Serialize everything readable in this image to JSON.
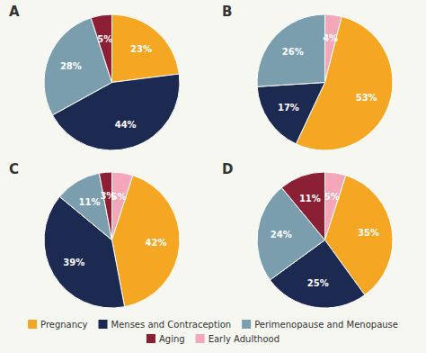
{
  "chart_data": [
    {
      "type": "pie",
      "title": "A",
      "categories": [
        "Pregnancy",
        "Menses and Contraception",
        "Perimenopause and Menopause",
        "Aging"
      ],
      "values": [
        23,
        44,
        28,
        5
      ],
      "value_labels": [
        "23%",
        "44%",
        "28%",
        "5%"
      ],
      "colors": [
        "#f5a623",
        "#1c2951",
        "#7a9eae",
        "#8b2035"
      ],
      "data_labels": true,
      "legend": "bottom"
    },
    {
      "type": "pie",
      "title": "B",
      "categories": [
        "Early Adulthood",
        "Pregnancy",
        "Menses and Contraception",
        "Perimenopause and Menopause"
      ],
      "values": [
        4,
        53,
        17,
        26
      ],
      "value_labels": [
        "4%",
        "53%",
        "17%",
        "26%"
      ],
      "colors": [
        "#f4a7b9",
        "#f5a623",
        "#1c2951",
        "#7a9eae"
      ],
      "data_labels": true,
      "legend": "bottom"
    },
    {
      "type": "pie",
      "title": "C",
      "categories": [
        "Early Adulthood",
        "Pregnancy",
        "Menses and Contraception",
        "Perimenopause and Menopause",
        "Aging"
      ],
      "values": [
        5,
        42,
        39,
        11,
        3
      ],
      "value_labels": [
        "5%",
        "42%",
        "39%",
        "11%",
        "3%"
      ],
      "colors": [
        "#f4a7b9",
        "#f5a623",
        "#1c2951",
        "#7a9eae",
        "#8b2035"
      ],
      "data_labels": true,
      "legend": "bottom"
    },
    {
      "type": "pie",
      "title": "D",
      "categories": [
        "Early Adulthood",
        "Pregnancy",
        "Menses and Contraception",
        "Perimenopause and Menopause",
        "Aging"
      ],
      "values": [
        5,
        35,
        25,
        24,
        11
      ],
      "value_labels": [
        "5%",
        "35%",
        "25%",
        "24%",
        "11%"
      ],
      "colors": [
        "#f4a7b9",
        "#f5a623",
        "#1c2951",
        "#7a9eae",
        "#8b2035"
      ],
      "data_labels": true,
      "legend": "bottom"
    }
  ]
}
